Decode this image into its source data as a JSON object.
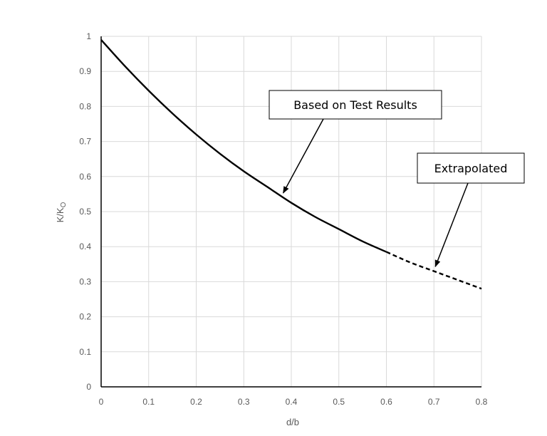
{
  "chart_data": {
    "type": "line",
    "xlabel": "d/b",
    "ylabel": "K/K",
    "ylabel_subscript": "O",
    "xlim": [
      0,
      0.8
    ],
    "ylim": [
      0,
      1
    ],
    "x_ticks": [
      "0",
      "0.1",
      "0.2",
      "0.3",
      "0.4",
      "0.5",
      "0.6",
      "0.7",
      "0.8"
    ],
    "y_ticks": [
      "0",
      "0.1",
      "0.2",
      "0.3",
      "0.4",
      "0.5",
      "0.6",
      "0.7",
      "0.8",
      "0.9",
      "1"
    ],
    "grid": true,
    "series": [
      {
        "style": "solid",
        "color": "#000000",
        "x": [
          0,
          0.05,
          0.1,
          0.15,
          0.2,
          0.25,
          0.3,
          0.35,
          0.4,
          0.45,
          0.5,
          0.55,
          0.6
        ],
        "y": [
          0.99,
          0.915,
          0.845,
          0.78,
          0.72,
          0.665,
          0.615,
          0.57,
          0.525,
          0.485,
          0.45,
          0.415,
          0.385
        ]
      },
      {
        "style": "dashed",
        "color": "#000000",
        "x": [
          0.6,
          0.65,
          0.7,
          0.75,
          0.8
        ],
        "y": [
          0.385,
          0.355,
          0.33,
          0.305,
          0.28
        ]
      }
    ],
    "annotations": [
      {
        "text": "Based on Test Results",
        "points_to": {
          "x": 0.38,
          "y": 0.545
        }
      },
      {
        "text": "Extrapolated",
        "points_to": {
          "x": 0.7,
          "y": 0.335
        }
      }
    ]
  }
}
